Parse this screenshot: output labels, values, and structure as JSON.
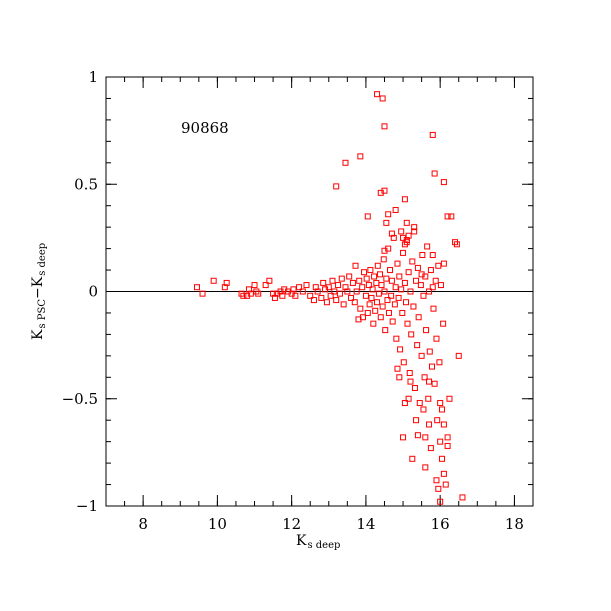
{
  "chart_data": {
    "type": "scatter",
    "annotation": "90868",
    "xlabel": "K",
    "xlabel_sub": "s deep",
    "ylabel_main_1": "K",
    "ylabel_sub_1": "s PSC",
    "ylabel_minus": "−",
    "ylabel_main_2": "K",
    "ylabel_sub_2": "s deep",
    "xlim": [
      7.0,
      18.5
    ],
    "ylim": [
      -1.0,
      1.0
    ],
    "xticks": [
      8,
      10,
      12,
      14,
      16,
      18
    ],
    "xtick_labels": [
      "8",
      "10",
      "12",
      "14",
      "16",
      "18"
    ],
    "yticks": [
      -1,
      -0.5,
      0,
      0.5,
      1
    ],
    "ytick_labels": [
      "−1",
      "−0.5",
      "0",
      "0.5",
      "1"
    ],
    "reference_line_y": 0,
    "marker_color": "#ff0000",
    "marker": "open-square",
    "points": [
      [
        9.45,
        0.02
      ],
      [
        9.6,
        -0.01
      ],
      [
        9.9,
        0.05
      ],
      [
        10.2,
        0.02
      ],
      [
        10.25,
        0.04
      ],
      [
        10.65,
        -0.01
      ],
      [
        10.7,
        -0.02
      ],
      [
        10.8,
        -0.02
      ],
      [
        10.85,
        0.01
      ],
      [
        10.9,
        -0.01
      ],
      [
        11.0,
        0.03
      ],
      [
        11.05,
        0.0
      ],
      [
        11.1,
        -0.01
      ],
      [
        11.3,
        0.03
      ],
      [
        11.4,
        0.05
      ],
      [
        11.5,
        -0.01
      ],
      [
        11.55,
        -0.03
      ],
      [
        11.6,
        -0.01
      ],
      [
        11.7,
        0.0
      ],
      [
        11.75,
        -0.02
      ],
      [
        11.8,
        0.01
      ],
      [
        11.9,
        0.0
      ],
      [
        12.0,
        -0.01
      ],
      [
        12.05,
        0.01
      ],
      [
        12.1,
        -0.02
      ],
      [
        12.2,
        0.02
      ],
      [
        12.3,
        0.0
      ],
      [
        12.4,
        0.03
      ],
      [
        12.5,
        -0.02
      ],
      [
        12.6,
        -0.04
      ],
      [
        12.65,
        0.02
      ],
      [
        12.7,
        0.0
      ],
      [
        12.8,
        -0.03
      ],
      [
        12.85,
        0.04
      ],
      [
        12.9,
        0.01
      ],
      [
        12.95,
        -0.05
      ],
      [
        13.0,
        0.02
      ],
      [
        13.05,
        -0.02
      ],
      [
        13.1,
        0.05
      ],
      [
        13.15,
        0.0
      ],
      [
        13.2,
        -0.04
      ],
      [
        13.25,
        0.03
      ],
      [
        13.3,
        -0.01
      ],
      [
        13.35,
        0.06
      ],
      [
        13.4,
        -0.06
      ],
      [
        13.45,
        0.02
      ],
      [
        13.5,
        0.0
      ],
      [
        13.55,
        0.07
      ],
      [
        13.6,
        -0.03
      ],
      [
        13.65,
        0.04
      ],
      [
        13.7,
        -0.05
      ],
      [
        13.72,
        0.12
      ],
      [
        13.75,
        0.0
      ],
      [
        13.8,
        -0.13
      ],
      [
        13.82,
        0.05
      ],
      [
        13.85,
        -0.08
      ],
      [
        13.9,
        0.02
      ],
      [
        13.92,
        -0.12
      ],
      [
        13.95,
        0.09
      ],
      [
        14.0,
        -0.02
      ],
      [
        14.02,
        0.06
      ],
      [
        14.05,
        -0.1
      ],
      [
        14.08,
        0.03
      ],
      [
        14.1,
        -0.06
      ],
      [
        14.12,
        0.1
      ],
      [
        14.15,
        -0.03
      ],
      [
        14.18,
        0.01
      ],
      [
        14.2,
        -0.15
      ],
      [
        14.22,
        0.07
      ],
      [
        14.25,
        -0.09
      ],
      [
        14.28,
        0.04
      ],
      [
        14.3,
        -0.05
      ],
      [
        14.32,
        0.12
      ],
      [
        14.35,
        -0.01
      ],
      [
        14.38,
        0.08
      ],
      [
        14.4,
        -0.12
      ],
      [
        14.42,
        0.03
      ],
      [
        14.45,
        -0.07
      ],
      [
        14.48,
        0.15
      ],
      [
        14.5,
        0.0
      ],
      [
        14.52,
        -0.18
      ],
      [
        14.55,
        0.06
      ],
      [
        14.58,
        -0.04
      ],
      [
        14.6,
        0.2
      ],
      [
        14.62,
        -0.1
      ],
      [
        14.65,
        0.1
      ],
      [
        14.68,
        -0.02
      ],
      [
        14.7,
        0.05
      ],
      [
        14.72,
        -0.14
      ],
      [
        14.75,
        0.25
      ],
      [
        14.78,
        -0.06
      ],
      [
        14.8,
        0.02
      ],
      [
        14.82,
        -0.22
      ],
      [
        14.85,
        0.13
      ],
      [
        14.88,
        -0.03
      ],
      [
        14.9,
        0.07
      ],
      [
        14.92,
        -0.27
      ],
      [
        14.95,
        0.01
      ],
      [
        14.98,
        -0.1
      ],
      [
        15.0,
        0.18
      ],
      [
        15.02,
        -0.33
      ],
      [
        15.05,
        0.04
      ],
      [
        15.08,
        -0.05
      ],
      [
        15.1,
        0.23
      ],
      [
        15.12,
        -0.15
      ],
      [
        15.15,
        0.09
      ],
      [
        15.18,
        -0.38
      ],
      [
        15.2,
        0.0
      ],
      [
        15.22,
        -0.2
      ],
      [
        15.25,
        0.14
      ],
      [
        15.28,
        -0.07
      ],
      [
        15.3,
        0.28
      ],
      [
        15.32,
        -0.45
      ],
      [
        15.35,
        0.05
      ],
      [
        15.38,
        -0.25
      ],
      [
        15.4,
        0.11
      ],
      [
        15.42,
        -0.12
      ],
      [
        15.45,
        -0.52
      ],
      [
        15.48,
        0.03
      ],
      [
        15.5,
        -0.3
      ],
      [
        15.52,
        0.17
      ],
      [
        15.55,
        -0.02
      ],
      [
        15.58,
        -0.4
      ],
      [
        15.6,
        0.07
      ],
      [
        15.62,
        -0.18
      ],
      [
        15.65,
        0.21
      ],
      [
        15.68,
        -0.5
      ],
      [
        15.7,
        0.0
      ],
      [
        15.72,
        -0.28
      ],
      [
        15.75,
        0.1
      ],
      [
        15.78,
        -0.35
      ],
      [
        15.8,
        0.02
      ],
      [
        15.82,
        -0.08
      ],
      [
        15.85,
        -0.43
      ],
      [
        15.88,
        0.05
      ],
      [
        15.9,
        -0.22
      ],
      [
        15.92,
        -0.6
      ],
      [
        15.95,
        0.12
      ],
      [
        15.98,
        -0.33
      ],
      [
        16.0,
        -0.7
      ],
      [
        16.02,
        0.03
      ],
      [
        16.05,
        -0.78
      ],
      [
        16.08,
        -0.15
      ],
      [
        16.1,
        -0.85
      ],
      [
        16.15,
        -0.9
      ],
      [
        16.2,
        -0.72
      ],
      [
        16.25,
        -0.5
      ],
      [
        16.3,
        0.35
      ],
      [
        16.45,
        0.22
      ],
      [
        16.5,
        -0.3
      ],
      [
        16.6,
        -0.96
      ],
      [
        16.0,
        -0.98
      ],
      [
        15.95,
        -0.92
      ],
      [
        15.1,
        0.24
      ],
      [
        15.05,
        0.22
      ],
      [
        15.15,
        0.26
      ],
      [
        15.0,
        0.25
      ],
      [
        14.95,
        0.28
      ],
      [
        14.3,
        0.92
      ],
      [
        14.45,
        0.9
      ],
      [
        14.5,
        0.77
      ],
      [
        13.85,
        0.63
      ],
      [
        13.45,
        0.6
      ],
      [
        15.8,
        0.73
      ],
      [
        15.85,
        0.55
      ],
      [
        16.1,
        0.51
      ],
      [
        13.2,
        0.49
      ],
      [
        14.4,
        0.46
      ],
      [
        14.5,
        0.47
      ],
      [
        15.05,
        0.43
      ],
      [
        14.8,
        0.38
      ],
      [
        14.6,
        0.36
      ],
      [
        14.05,
        0.35
      ],
      [
        16.2,
        0.35
      ],
      [
        14.55,
        0.32
      ],
      [
        15.3,
        0.3
      ],
      [
        14.7,
        0.27
      ],
      [
        15.1,
        0.32
      ],
      [
        16.4,
        0.23
      ],
      [
        14.5,
        0.19
      ],
      [
        15.8,
        0.17
      ],
      [
        16.1,
        0.13
      ],
      [
        15.5,
        0.08
      ],
      [
        15.0,
        -0.68
      ],
      [
        15.25,
        -0.78
      ],
      [
        15.6,
        -0.82
      ],
      [
        15.9,
        -0.88
      ],
      [
        15.7,
        -0.62
      ],
      [
        15.55,
        -0.55
      ],
      [
        15.35,
        -0.6
      ],
      [
        15.15,
        -0.5
      ],
      [
        15.05,
        -0.52
      ],
      [
        15.2,
        -0.42
      ],
      [
        16.0,
        -0.52
      ],
      [
        16.05,
        -0.55
      ],
      [
        16.1,
        -0.62
      ],
      [
        16.2,
        -0.68
      ],
      [
        15.6,
        -0.68
      ],
      [
        15.75,
        -0.73
      ],
      [
        15.4,
        -0.67
      ],
      [
        14.9,
        -0.4
      ],
      [
        14.85,
        -0.36
      ],
      [
        15.7,
        -0.42
      ]
    ]
  }
}
